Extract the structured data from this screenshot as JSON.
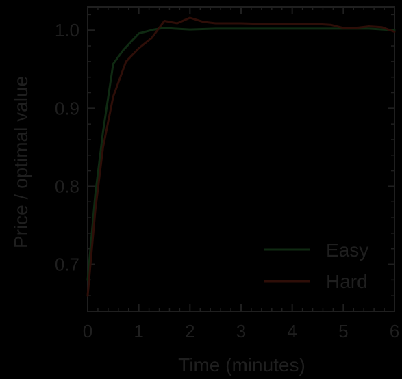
{
  "chart_data": {
    "type": "line",
    "title": "",
    "xlabel": "Time (minutes)",
    "ylabel": "Price / optimal value",
    "xlim": [
      0,
      6
    ],
    "ylim": [
      0.64,
      1.03
    ],
    "xticks": [
      "0",
      "1",
      "2",
      "3",
      "4",
      "5",
      "6"
    ],
    "yticks": [
      "0.7",
      "0.8",
      "0.9",
      "1.0"
    ],
    "grid": false,
    "legend_position": "bottom-right",
    "background_color": "#000000",
    "axis_color": "#1f1f1f",
    "series": [
      {
        "name": "Easy",
        "color": "#0f2a12",
        "x": [
          0,
          0.15,
          0.3,
          0.5,
          0.7,
          1.0,
          1.3,
          1.5,
          1.7,
          2.0,
          2.5,
          3.0,
          3.5,
          4.0,
          4.5,
          5.0,
          5.5,
          6.0
        ],
        "y": [
          0.68,
          0.79,
          0.87,
          0.957,
          0.975,
          0.996,
          1.001,
          1.003,
          1.002,
          1.001,
          1.002,
          1.002,
          1.002,
          1.002,
          1.002,
          1.002,
          1.002,
          1.0
        ]
      },
      {
        "name": "Hard",
        "color": "#2e0e08",
        "x": [
          0,
          0.15,
          0.3,
          0.5,
          0.75,
          1.0,
          1.25,
          1.5,
          1.75,
          2.0,
          2.25,
          2.5,
          3.0,
          3.5,
          4.0,
          4.5,
          4.75,
          5.0,
          5.25,
          5.5,
          5.75,
          6.0
        ],
        "y": [
          0.66,
          0.77,
          0.85,
          0.915,
          0.96,
          0.977,
          0.99,
          1.012,
          1.009,
          1.016,
          1.011,
          1.009,
          1.009,
          1.008,
          1.008,
          1.008,
          1.007,
          1.003,
          1.003,
          1.005,
          1.004,
          0.998
        ]
      }
    ]
  }
}
